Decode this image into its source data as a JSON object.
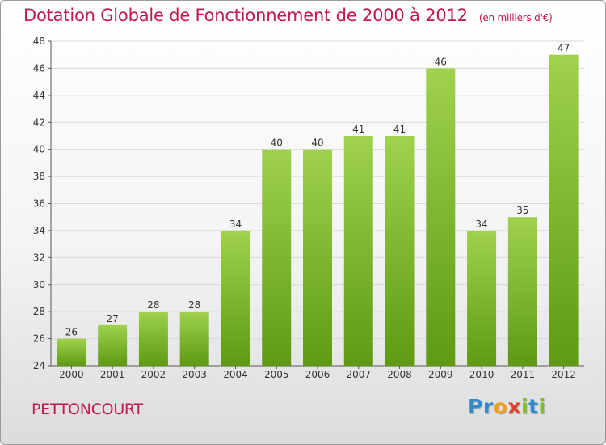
{
  "header": {
    "title": "Dotation Globale de Fonctionnement de 2000 à 2012",
    "unit": "(en milliers d'€)"
  },
  "footer": {
    "commune": "PETTONCOURT",
    "logo_letters": [
      {
        "ch": "P",
        "color": "#2e8bcf"
      },
      {
        "ch": "r",
        "color": "#2e8bcf"
      },
      {
        "ch": "o",
        "color": "#f0a21c"
      },
      {
        "ch": "x",
        "color": "#e23b2e"
      },
      {
        "ch": "i",
        "color": "#7cbd2a"
      },
      {
        "ch": "t",
        "color": "#2e8bcf"
      },
      {
        "ch": "i",
        "color": "#7cbd2a"
      }
    ]
  },
  "colors": {
    "accent": "#c4174b",
    "bar_top": "#9fd24d",
    "bar_bottom": "#5e9a12",
    "grid": "#d8d8d8"
  },
  "chart_data": {
    "type": "bar",
    "categories": [
      "2000",
      "2001",
      "2002",
      "2003",
      "2004",
      "2005",
      "2006",
      "2007",
      "2008",
      "2009",
      "2010",
      "2011",
      "2012"
    ],
    "values": [
      26,
      27,
      28,
      28,
      34,
      40,
      40,
      41,
      41,
      46,
      34,
      35,
      47
    ],
    "ylim": [
      24,
      48
    ],
    "yticks": [
      24,
      26,
      28,
      30,
      32,
      34,
      36,
      38,
      40,
      42,
      44,
      46,
      48
    ],
    "grid": true,
    "data_labels": true
  }
}
